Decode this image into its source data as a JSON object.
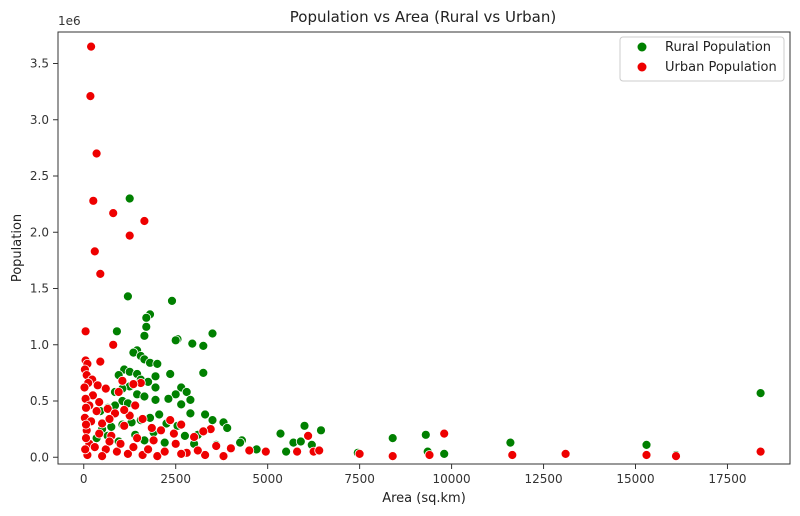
{
  "chart_data": {
    "type": "scatter",
    "title": "Population vs Area (Rural vs Urban)",
    "xlabel": "Area (sq.km)",
    "ylabel": "Population",
    "y_offset_label": "1e6",
    "xlim": [
      -700,
      19200
    ],
    "ylim": [
      -0.06,
      3.78
    ],
    "y_unit": 1000000,
    "x_ticks": [
      0,
      2500,
      5000,
      7500,
      10000,
      12500,
      15000,
      17500
    ],
    "x_tick_labels": [
      "0",
      "2500",
      "5000",
      "7500",
      "10000",
      "12500",
      "15000",
      "17500"
    ],
    "y_ticks": [
      0.0,
      0.5,
      1.0,
      1.5,
      2.0,
      2.5,
      3.0,
      3.5
    ],
    "y_tick_labels": [
      "0.0",
      "0.5",
      "1.0",
      "1.5",
      "2.0",
      "2.5",
      "3.0",
      "3.5"
    ],
    "grid": false,
    "legend_position": "top-right",
    "series": [
      {
        "name": "Rural Population",
        "color": "#008000",
        "points": [
          [
            1250,
            2.3
          ],
          [
            1200,
            1.43
          ],
          [
            2400,
            1.39
          ],
          [
            1800,
            1.27
          ],
          [
            1700,
            1.24
          ],
          [
            1700,
            1.16
          ],
          [
            2550,
            1.05
          ],
          [
            2500,
            1.04
          ],
          [
            900,
            1.12
          ],
          [
            1650,
            1.08
          ],
          [
            3500,
            1.1
          ],
          [
            2950,
            1.01
          ],
          [
            3250,
            0.99
          ],
          [
            1450,
            0.95
          ],
          [
            1350,
            0.93
          ],
          [
            1550,
            0.9
          ],
          [
            1650,
            0.87
          ],
          [
            1800,
            0.84
          ],
          [
            2000,
            0.83
          ],
          [
            1100,
            0.78
          ],
          [
            1250,
            0.76
          ],
          [
            1450,
            0.74
          ],
          [
            950,
            0.73
          ],
          [
            2350,
            0.74
          ],
          [
            3250,
            0.75
          ],
          [
            1950,
            0.72
          ],
          [
            1550,
            0.69
          ],
          [
            1750,
            0.67
          ],
          [
            1250,
            0.63
          ],
          [
            1050,
            0.61
          ],
          [
            850,
            0.58
          ],
          [
            2650,
            0.62
          ],
          [
            2800,
            0.58
          ],
          [
            1450,
            0.56
          ],
          [
            1650,
            0.54
          ],
          [
            2500,
            0.56
          ],
          [
            2300,
            0.52
          ],
          [
            1950,
            0.51
          ],
          [
            1050,
            0.5
          ],
          [
            1200,
            0.48
          ],
          [
            850,
            0.46
          ],
          [
            650,
            0.44
          ],
          [
            450,
            0.41
          ],
          [
            2650,
            0.47
          ],
          [
            3300,
            0.38
          ],
          [
            3500,
            0.33
          ],
          [
            3800,
            0.31
          ],
          [
            3900,
            0.26
          ],
          [
            2900,
            0.39
          ],
          [
            2050,
            0.38
          ],
          [
            1800,
            0.35
          ],
          [
            1550,
            0.33
          ],
          [
            1300,
            0.31
          ],
          [
            1050,
            0.29
          ],
          [
            750,
            0.27
          ],
          [
            500,
            0.25
          ],
          [
            2550,
            0.28
          ],
          [
            2250,
            0.3
          ],
          [
            4300,
            0.15
          ],
          [
            4250,
            0.13
          ],
          [
            5350,
            0.21
          ],
          [
            5700,
            0.13
          ],
          [
            5900,
            0.14
          ],
          [
            6000,
            0.28
          ],
          [
            6450,
            0.24
          ],
          [
            6200,
            0.11
          ],
          [
            8400,
            0.17
          ],
          [
            9300,
            0.2
          ],
          [
            9350,
            0.05
          ],
          [
            11600,
            0.13
          ],
          [
            15300,
            0.11
          ],
          [
            16100,
            0.02
          ],
          [
            18400,
            0.57
          ],
          [
            3100,
            0.2
          ],
          [
            2750,
            0.19
          ],
          [
            1900,
            0.22
          ],
          [
            1400,
            0.2
          ],
          [
            650,
            0.19
          ],
          [
            350,
            0.17
          ],
          [
            4700,
            0.07
          ],
          [
            5500,
            0.05
          ],
          [
            7450,
            0.04
          ],
          [
            9800,
            0.03
          ],
          [
            3600,
            0.11
          ],
          [
            3000,
            0.12
          ],
          [
            2200,
            0.13
          ],
          [
            1650,
            0.15
          ],
          [
            950,
            0.14
          ],
          [
            2900,
            0.51
          ],
          [
            1950,
            0.62
          ]
        ]
      },
      {
        "name": "Urban Population",
        "color": "#ee0000",
        "points": [
          [
            200,
            3.65
          ],
          [
            180,
            3.21
          ],
          [
            350,
            2.7
          ],
          [
            260,
            2.28
          ],
          [
            800,
            2.17
          ],
          [
            1650,
            2.1
          ],
          [
            1250,
            1.97
          ],
          [
            300,
            1.83
          ],
          [
            450,
            1.63
          ],
          [
            50,
            1.12
          ],
          [
            50,
            0.86
          ],
          [
            100,
            0.83
          ],
          [
            450,
            0.85
          ],
          [
            30,
            0.78
          ],
          [
            80,
            0.73
          ],
          [
            230,
            0.69
          ],
          [
            120,
            0.66
          ],
          [
            380,
            0.64
          ],
          [
            20,
            0.62
          ],
          [
            1550,
            0.66
          ],
          [
            800,
            1.0
          ],
          [
            1050,
            0.68
          ],
          [
            1350,
            0.65
          ],
          [
            600,
            0.61
          ],
          [
            950,
            0.58
          ],
          [
            250,
            0.55
          ],
          [
            50,
            0.52
          ],
          [
            420,
            0.49
          ],
          [
            150,
            0.46
          ],
          [
            650,
            0.43
          ],
          [
            350,
            0.41
          ],
          [
            850,
            0.39
          ],
          [
            1250,
            0.37
          ],
          [
            1600,
            0.34
          ],
          [
            30,
            0.35
          ],
          [
            200,
            0.32
          ],
          [
            500,
            0.3
          ],
          [
            1100,
            0.28
          ],
          [
            1850,
            0.26
          ],
          [
            2100,
            0.24
          ],
          [
            2450,
            0.21
          ],
          [
            3000,
            0.18
          ],
          [
            3450,
            0.25
          ],
          [
            3250,
            0.23
          ],
          [
            80,
            0.24
          ],
          [
            420,
            0.21
          ],
          [
            750,
            0.19
          ],
          [
            1450,
            0.17
          ],
          [
            1900,
            0.15
          ],
          [
            2500,
            0.12
          ],
          [
            3600,
            0.1
          ],
          [
            4000,
            0.08
          ],
          [
            4500,
            0.06
          ],
          [
            4950,
            0.05
          ],
          [
            5800,
            0.05
          ],
          [
            6100,
            0.19
          ],
          [
            6250,
            0.05
          ],
          [
            6400,
            0.06
          ],
          [
            7500,
            0.03
          ],
          [
            8400,
            0.01
          ],
          [
            9400,
            0.02
          ],
          [
            9800,
            0.21
          ],
          [
            11650,
            0.02
          ],
          [
            13100,
            0.03
          ],
          [
            15300,
            0.02
          ],
          [
            16100,
            0.01
          ],
          [
            18400,
            0.05
          ],
          [
            150,
            0.12
          ],
          [
            300,
            0.09
          ],
          [
            600,
            0.07
          ],
          [
            900,
            0.05
          ],
          [
            1200,
            0.03
          ],
          [
            1600,
            0.02
          ],
          [
            2000,
            0.01
          ],
          [
            2800,
            0.04
          ],
          [
            3300,
            0.02
          ],
          [
            3800,
            0.01
          ],
          [
            100,
            0.02
          ],
          [
            500,
            0.01
          ],
          [
            700,
            0.14
          ],
          [
            1000,
            0.12
          ],
          [
            1350,
            0.09
          ],
          [
            1750,
            0.07
          ],
          [
            2200,
            0.05
          ],
          [
            2650,
            0.03
          ],
          [
            3100,
            0.06
          ],
          [
            60,
            0.44
          ],
          [
            60,
            0.29
          ],
          [
            60,
            0.17
          ],
          [
            40,
            0.07
          ],
          [
            2350,
            0.33
          ],
          [
            2650,
            0.29
          ],
          [
            1400,
            0.46
          ],
          [
            1100,
            0.42
          ],
          [
            700,
            0.34
          ]
        ]
      }
    ]
  }
}
